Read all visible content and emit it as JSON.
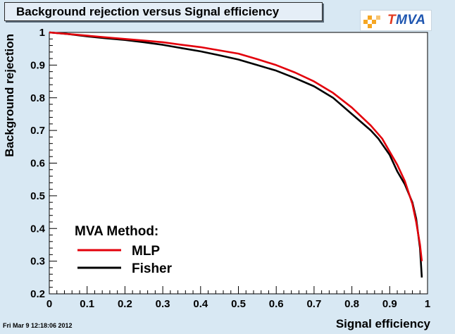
{
  "chart_data": {
    "type": "line",
    "title": "Background rejection versus Signal efficiency",
    "xlabel": "Signal efficiency",
    "ylabel": "Background rejection",
    "xlim": [
      0,
      1
    ],
    "ylim": [
      0.2,
      1
    ],
    "xticks": [
      "0",
      "0.1",
      "0.2",
      "0.3",
      "0.4",
      "0.5",
      "0.6",
      "0.7",
      "0.8",
      "0.9",
      "1"
    ],
    "yticks": [
      "0.2",
      "0.3",
      "0.4",
      "0.5",
      "0.6",
      "0.7",
      "0.8",
      "0.9",
      "1"
    ],
    "grid": false,
    "legend": {
      "title": "MVA Method:",
      "placement": "bottom-left"
    },
    "series": [
      {
        "name": "MLP",
        "color": "#e3000b",
        "x": [
          0,
          0.05,
          0.1,
          0.15,
          0.2,
          0.25,
          0.3,
          0.35,
          0.4,
          0.45,
          0.5,
          0.55,
          0.6,
          0.65,
          0.7,
          0.75,
          0.8,
          0.85,
          0.88,
          0.9,
          0.92,
          0.94,
          0.96,
          0.97,
          0.98,
          0.985
        ],
        "values": [
          1.0,
          0.995,
          0.99,
          0.985,
          0.98,
          0.975,
          0.97,
          0.962,
          0.955,
          0.945,
          0.935,
          0.918,
          0.9,
          0.877,
          0.85,
          0.815,
          0.77,
          0.715,
          0.675,
          0.635,
          0.595,
          0.545,
          0.475,
          0.42,
          0.35,
          0.3
        ]
      },
      {
        "name": "Fisher",
        "color": "#000000",
        "x": [
          0,
          0.05,
          0.1,
          0.15,
          0.2,
          0.25,
          0.3,
          0.35,
          0.4,
          0.45,
          0.5,
          0.55,
          0.6,
          0.65,
          0.7,
          0.75,
          0.8,
          0.85,
          0.87,
          0.9,
          0.92,
          0.94,
          0.96,
          0.97,
          0.98,
          0.985
        ],
        "values": [
          1.0,
          0.995,
          0.988,
          0.982,
          0.977,
          0.97,
          0.962,
          0.952,
          0.942,
          0.93,
          0.917,
          0.9,
          0.883,
          0.86,
          0.835,
          0.8,
          0.75,
          0.7,
          0.675,
          0.625,
          0.575,
          0.535,
          0.48,
          0.43,
          0.34,
          0.25
        ]
      }
    ]
  },
  "logo_text": {
    "prefix": "T",
    "rest": "MVA"
  },
  "footer": "Fri Mar  9 12:18:06 2012"
}
